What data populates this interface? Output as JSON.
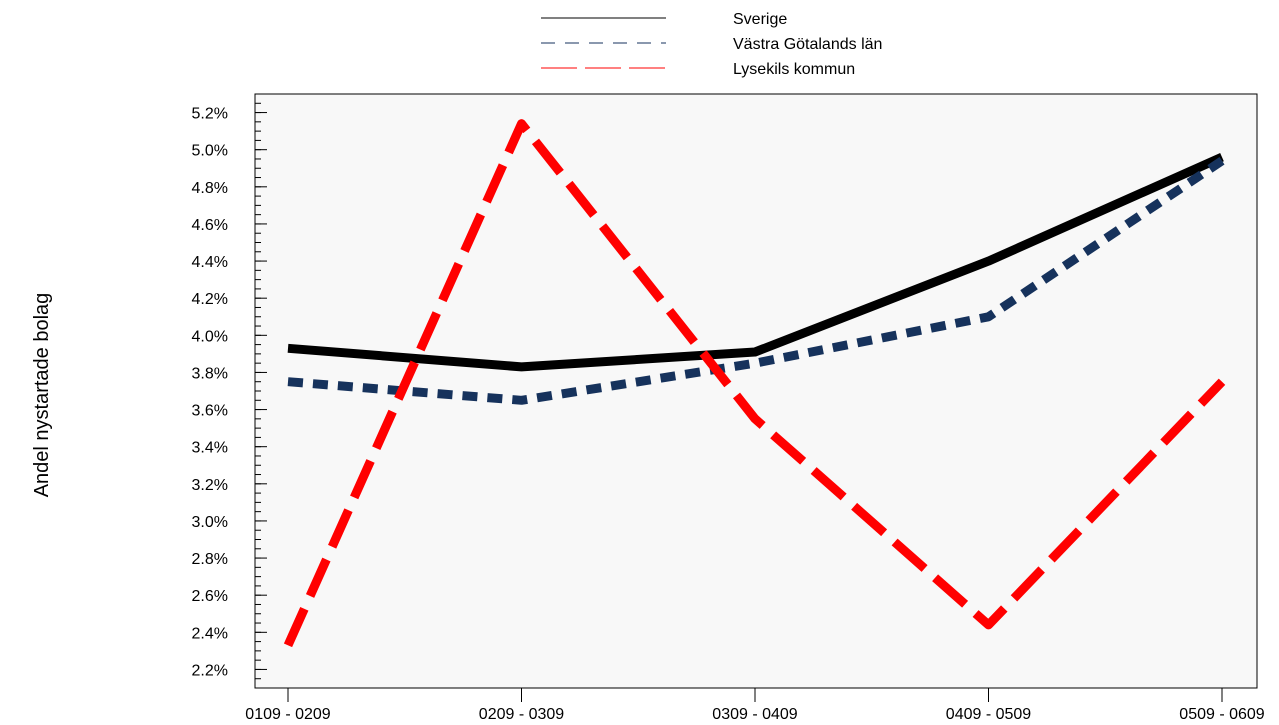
{
  "chart_data": {
    "type": "line",
    "title": "",
    "xlabel": "",
    "ylabel": "Andel nystartade bolag",
    "categories": [
      "0109 - 0209",
      "0209 - 0309",
      "0309 - 0409",
      "0409 - 0509",
      "0509 - 0609"
    ],
    "ylim": [
      0.021,
      0.053
    ],
    "yticks": [
      0.022,
      0.024,
      0.026,
      0.028,
      0.03,
      0.032,
      0.034,
      0.036,
      0.038,
      0.04,
      0.042,
      0.044,
      0.046,
      0.048,
      0.05,
      0.052
    ],
    "ytick_labels": [
      "2.2%",
      "2.4%",
      "2.6%",
      "2.8%",
      "3.0%",
      "3.2%",
      "3.4%",
      "3.6%",
      "3.8%",
      "4.0%",
      "4.2%",
      "4.4%",
      "4.6%",
      "4.8%",
      "5.0%",
      "5.2%"
    ],
    "grid": false,
    "legend_position": "top-center",
    "series": [
      {
        "name": "Sverige",
        "values": [
          0.0393,
          0.0383,
          0.0391,
          0.044,
          0.0496
        ],
        "color": "#000000",
        "style": "solid"
      },
      {
        "name": "Västra Götalands län",
        "values": [
          0.0375,
          0.0365,
          0.0385,
          0.041,
          0.0494
        ],
        "color": "#16325c",
        "style": "dashed"
      },
      {
        "name": "Lysekils kommun",
        "values": [
          0.0233,
          0.0514,
          0.0355,
          0.0244,
          0.0375
        ],
        "color": "#ff0000",
        "style": "long-dashed"
      }
    ]
  }
}
